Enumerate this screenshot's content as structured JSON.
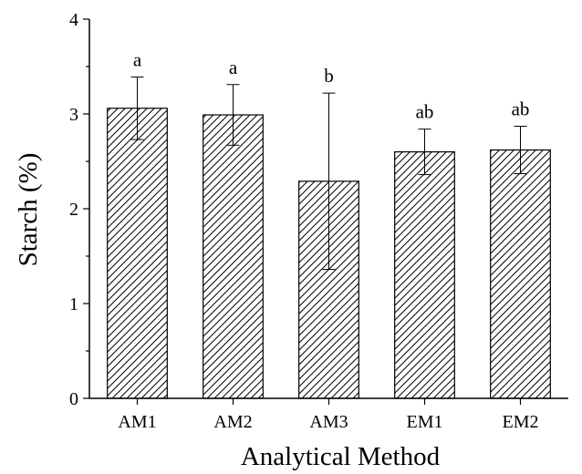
{
  "chart_data": {
    "type": "bar",
    "categories": [
      "AM1",
      "AM2",
      "AM3",
      "EM1",
      "EM2"
    ],
    "values": [
      3.06,
      2.99,
      2.29,
      2.6,
      2.62
    ],
    "error": [
      0.33,
      0.32,
      0.93,
      0.24,
      0.25
    ],
    "significance": [
      "a",
      "a",
      "b",
      "ab",
      "ab"
    ],
    "xlabel": "Analytical Method",
    "ylabel": "Starch (%)",
    "ylim": [
      0,
      4
    ],
    "yticks": [
      "0",
      "1",
      "2",
      "3",
      "4"
    ],
    "fill": "diagonal-hatch",
    "bar_color": "#000000",
    "grid": false
  }
}
